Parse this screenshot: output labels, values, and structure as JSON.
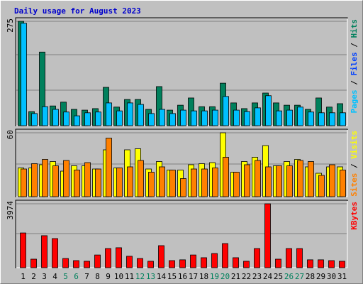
{
  "chart_data": {
    "type": "bar",
    "title": "Daily usage for August 2023",
    "title_color": "#0000cc",
    "categories": [
      "1",
      "2",
      "3",
      "4",
      "5",
      "6",
      "7",
      "8",
      "9",
      "10",
      "11",
      "12",
      "13",
      "14",
      "15",
      "16",
      "17",
      "18",
      "19",
      "20",
      "21",
      "22",
      "23",
      "24",
      "25",
      "26",
      "27",
      "28",
      "29",
      "30",
      "31"
    ],
    "category_colors": [
      "#000000",
      "#000000",
      "#000000",
      "#000000",
      "#00805c",
      "#00805c",
      "#000000",
      "#000000",
      "#000000",
      "#000000",
      "#000000",
      "#00805c",
      "#00805c",
      "#000000",
      "#000000",
      "#000000",
      "#000000",
      "#000000",
      "#00805c",
      "#00805c",
      "#000000",
      "#000000",
      "#000000",
      "#000000",
      "#000000",
      "#00805c",
      "#00805c",
      "#000000",
      "#000000",
      "#000000",
      "#000000"
    ],
    "separator": "/",
    "panels": [
      {
        "ylim": [
          0,
          275
        ],
        "yticks": [
          275
        ],
        "extra_legend": {
          "text": "Files",
          "color": "#0040ff"
        },
        "series": [
          {
            "name": "Hits",
            "color": "#00805c",
            "values": [
              275,
              37,
              194,
              52,
              62,
              43,
              41,
              45,
              101,
              49,
              69,
              69,
              43,
              103,
              41,
              54,
              73,
              50,
              50,
              112,
              60,
              45,
              60,
              86,
              60,
              54,
              54,
              43,
              73,
              49,
              58
            ]
          },
          {
            "name": "Pages",
            "color": "#00c0ff",
            "values": [
              270,
              32,
              50,
              43,
              36,
              26,
              34,
              36,
              60,
              39,
              60,
              56,
              32,
              43,
              32,
              41,
              39,
              39,
              41,
              77,
              41,
              37,
              47,
              79,
              39,
              41,
              49,
              36,
              34,
              34,
              34
            ]
          }
        ]
      },
      {
        "ylim": [
          0,
          60
        ],
        "yticks": [
          60
        ],
        "series": [
          {
            "name": "Visits",
            "color": "#ffff00",
            "values": [
              27,
              27,
              30,
              33,
              24,
              29,
              29,
              26,
              44,
              27,
              44,
              45,
              26,
              33,
              25,
              25,
              30,
              31,
              32,
              60,
              23,
              33,
              37,
              48,
              29,
              33,
              35,
              28,
              22,
              28,
              28
            ]
          },
          {
            "name": "Sites",
            "color": "#ff8000",
            "values": [
              26,
              31,
              35,
              29,
              34,
              25,
              32,
              26,
              55,
              27,
              28,
              34,
              23,
              28,
              25,
              17,
              26,
              26,
              27,
              37,
              23,
              30,
              34,
              28,
              29,
              29,
              34,
              33,
              20,
              30,
              25
            ]
          }
        ]
      },
      {
        "ylim": [
          0,
          3974
        ],
        "yticks": [
          3974
        ],
        "series": [
          {
            "name": "KBytes",
            "color": "#ff0000",
            "values": [
              2160,
              530,
              1990,
              1810,
              570,
              440,
              400,
              790,
              1190,
              1240,
              710,
              570,
              400,
              1370,
              440,
              490,
              790,
              620,
              880,
              1500,
              620,
              400,
              1190,
              3974,
              530,
              1190,
              1190,
              490,
              490,
              440,
              400
            ]
          }
        ]
      }
    ]
  }
}
